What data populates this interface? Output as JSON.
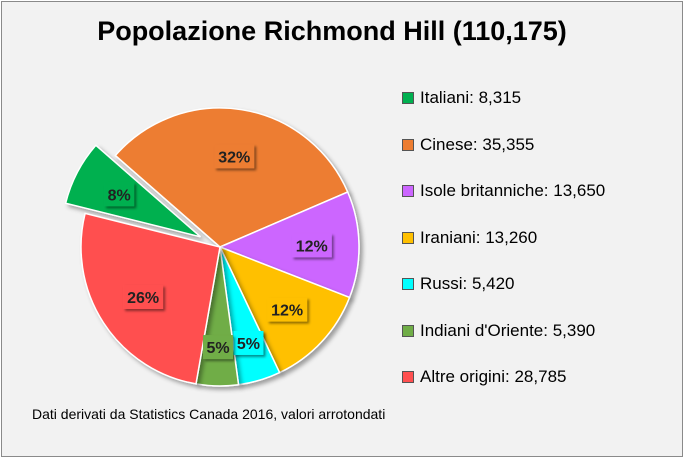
{
  "chart_data": {
    "type": "pie",
    "title": "Popolazione Richmond Hill (110,175)",
    "total": 110175,
    "slices": [
      {
        "name": "Italiani",
        "value": 8315,
        "percent_label": "8%",
        "color": "#00b050",
        "exploded": true
      },
      {
        "name": "Cinese",
        "value": 35355,
        "percent_label": "32%",
        "color": "#ed7d31",
        "exploded": false
      },
      {
        "name": "Isole britanniche",
        "value": 13650,
        "percent_label": "12%",
        "color": "#cc66ff",
        "exploded": false
      },
      {
        "name": "Iraniani",
        "value": 13260,
        "percent_label": "12%",
        "color": "#ffc000",
        "exploded": false
      },
      {
        "name": "Russi",
        "value": 5420,
        "percent_label": "5%",
        "color": "#00ffff",
        "exploded": false
      },
      {
        "name": "Indiani d'Oriente",
        "value": 5390,
        "percent_label": "5%",
        "color": "#70ad47",
        "exploded": false
      },
      {
        "name": "Altre origini",
        "value": 28785,
        "percent_label": "26%",
        "color": "#ff5050",
        "exploded": false
      }
    ],
    "legend": {
      "position": "right",
      "entries": [
        "Italiani: 8,315",
        "Cinese: 35,355",
        "Isole britanniche: 13,650",
        "Iraniani: 13,260",
        "Russi: 5,420",
        "Indiani d'Oriente: 5,390",
        "Altre origini: 28,785"
      ]
    }
  },
  "footnote": "Dati derivati da Statistics Canada 2016, valori arrotondati"
}
